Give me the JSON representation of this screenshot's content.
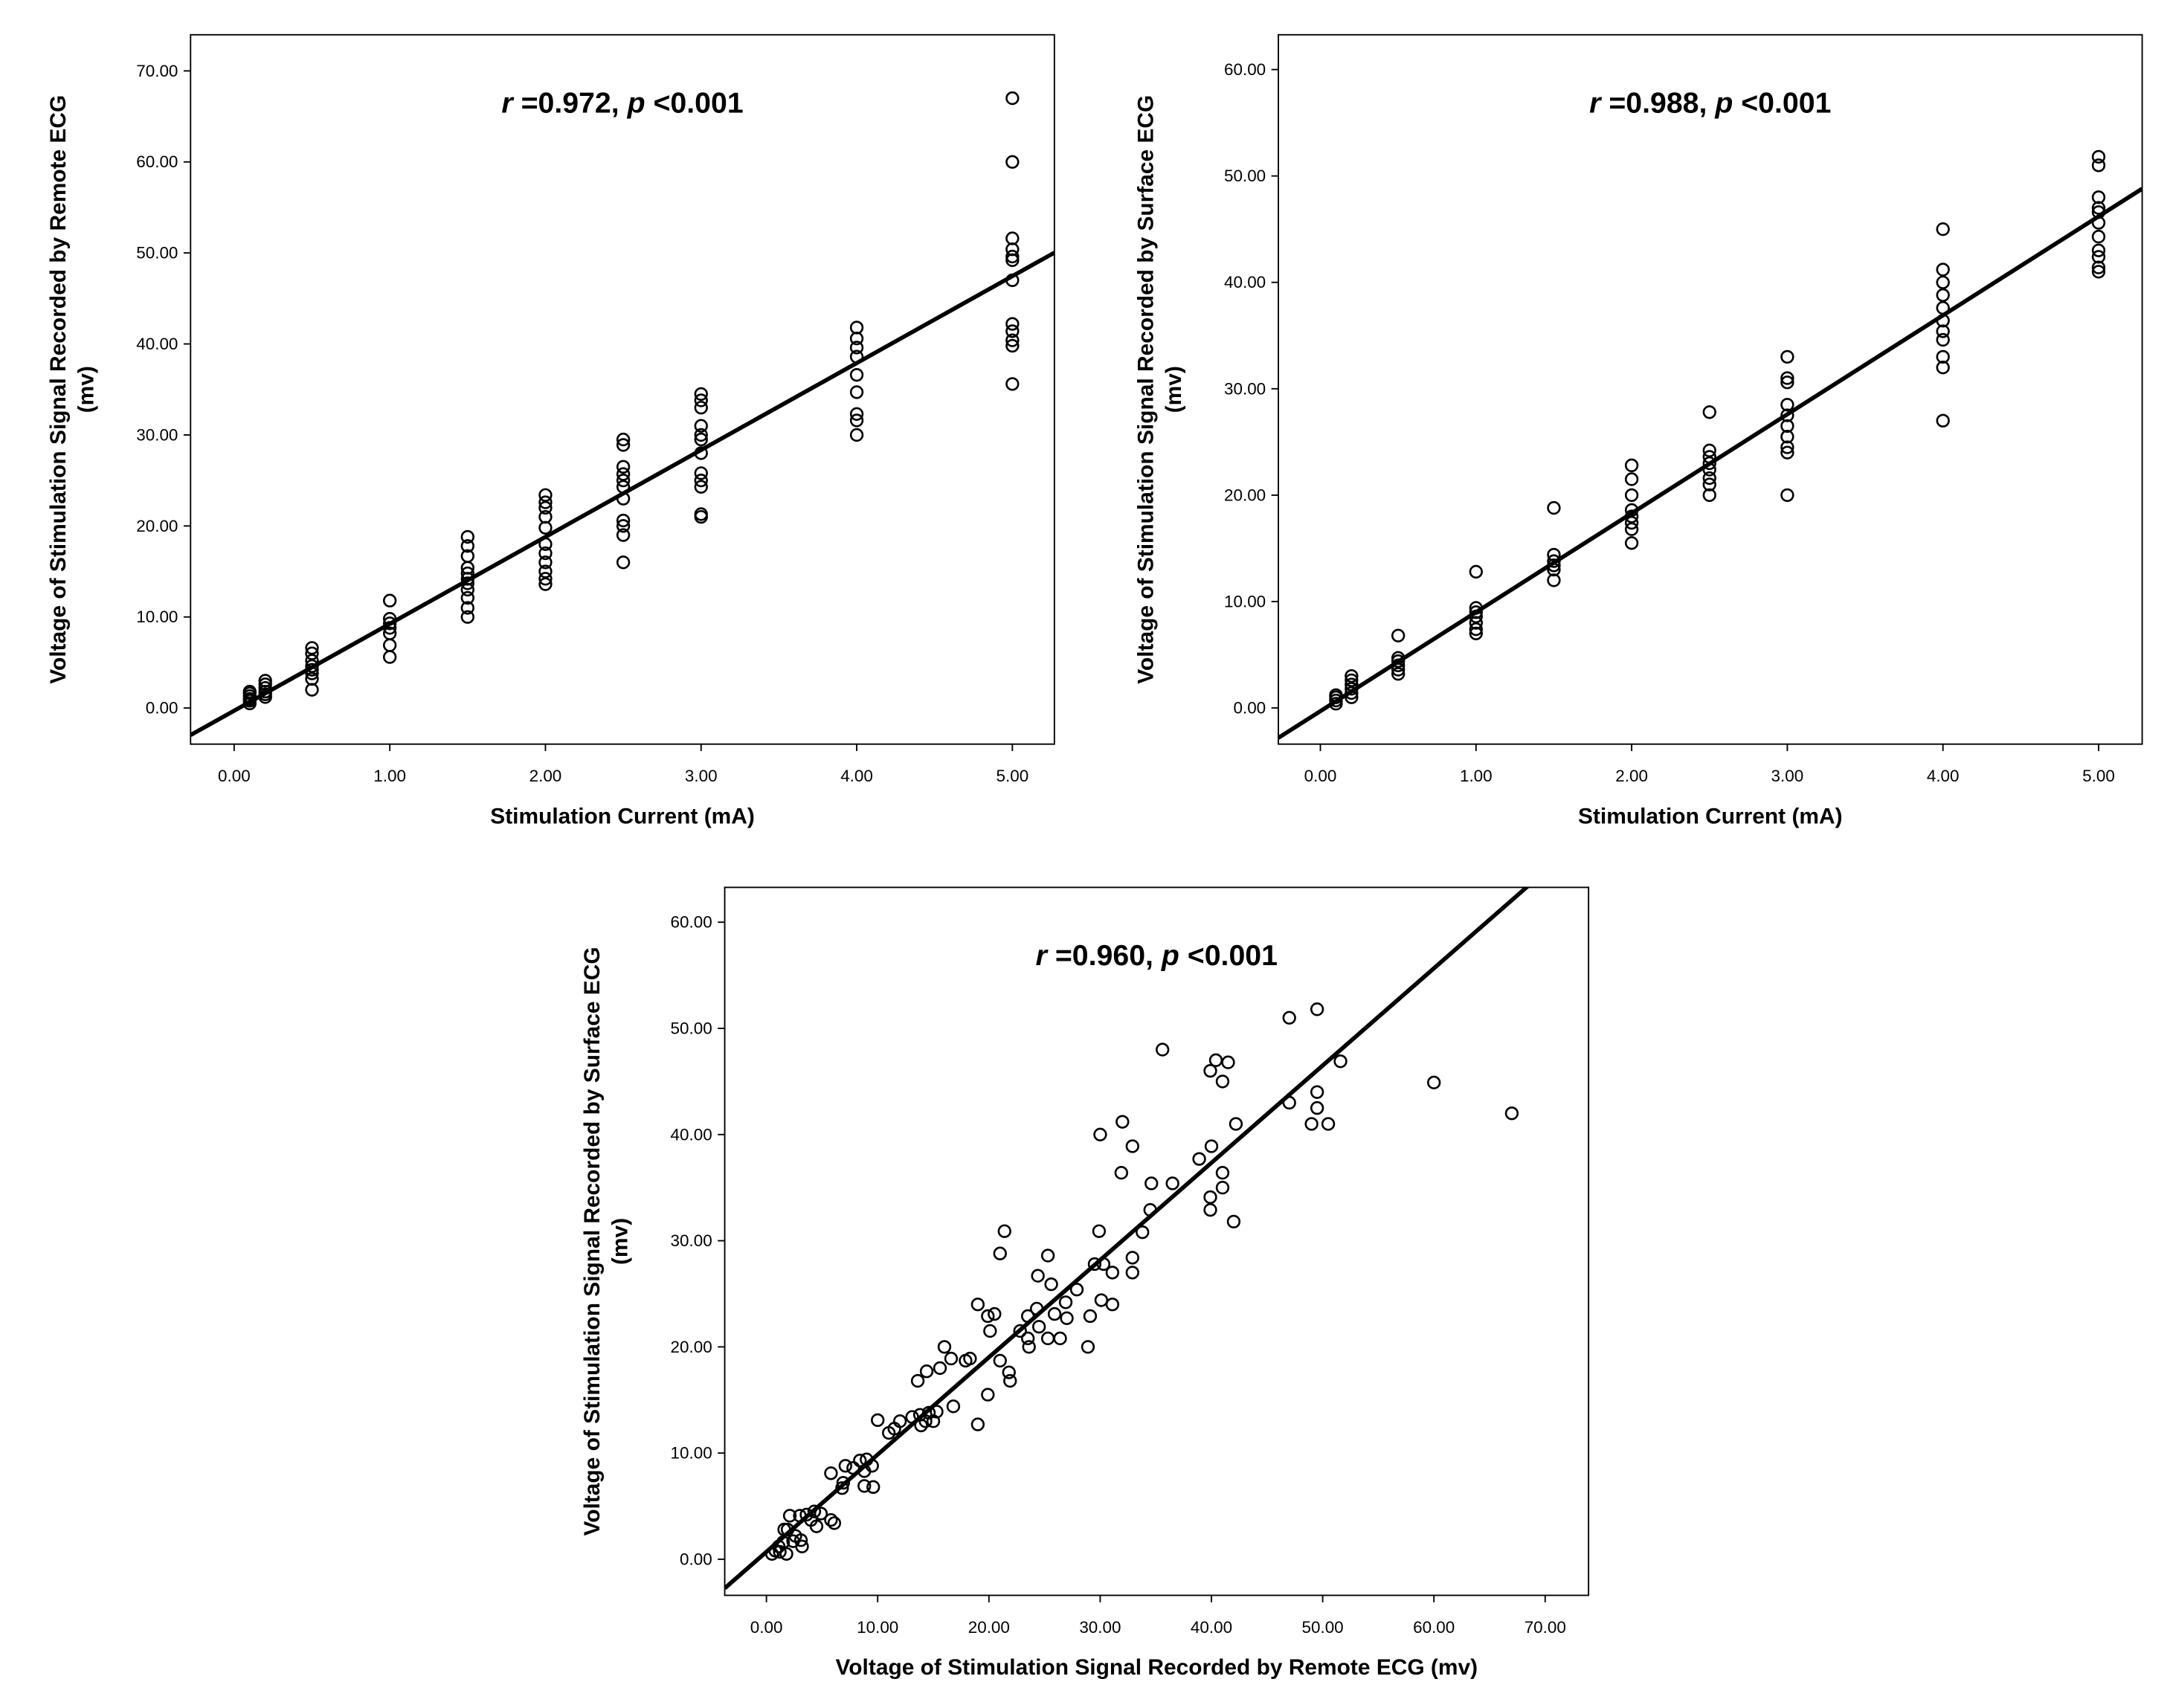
{
  "chart_data": [
    {
      "type": "scatter",
      "annotation": {
        "r_label": "r",
        "r_value": " =0.972, ",
        "p_label": "p",
        "p_value": " <0.001"
      },
      "xlabel": "Stimulation Current (mA)",
      "ylabel": [
        "Voltage of Stimulation Signal Recorded by Remote ECG",
        "(mv)"
      ],
      "xlim": [
        -0.28,
        5.27
      ],
      "ylim": [
        -3.97,
        73.97
      ],
      "xticks": [
        "0.00",
        "1.00",
        "2.00",
        "3.00",
        "4.00",
        "5.00"
      ],
      "yticks": [
        "0.00",
        "10.00",
        "20.00",
        "30.00",
        "40.00",
        "50.00",
        "60.00",
        "70.00"
      ],
      "fit_line": {
        "slope": 9.55,
        "intercept": -0.3
      },
      "grid": false,
      "points": {
        "0.1": [
          0.5,
          0.8,
          1.0,
          1.3,
          1.6,
          1.8
        ],
        "0.2": [
          1.2,
          1.5,
          1.8,
          2.2,
          2.6,
          3.0
        ],
        "0.5": [
          2.0,
          3.2,
          3.8,
          4.2,
          4.6,
          5.2,
          6.0,
          6.6
        ],
        "1.0": [
          5.6,
          6.9,
          8.2,
          8.8,
          9.3,
          9.8,
          11.8
        ],
        "1.5": [
          10.0,
          11.0,
          12.1,
          13.0,
          13.7,
          14.2,
          14.8,
          15.4,
          16.7,
          17.8,
          18.8
        ],
        "2.0": [
          13.6,
          14.2,
          15.0,
          16.0,
          17.0,
          18.0,
          19.8,
          21.0,
          22.0,
          22.6,
          23.4
        ],
        "2.5": [
          16.0,
          19.0,
          20.0,
          20.6,
          23.0,
          24.3,
          25.0,
          25.7,
          26.5,
          28.9,
          29.5
        ],
        "3.0": [
          21.0,
          21.3,
          24.3,
          25.0,
          25.8,
          28.0,
          29.5,
          30.0,
          31.0,
          33.0,
          33.8,
          34.5
        ],
        "4.0": [
          30.0,
          31.6,
          32.3,
          34.7,
          36.6,
          38.6,
          39.6,
          40.6,
          41.8
        ],
        "5.0": [
          35.6,
          39.8,
          40.4,
          41.4,
          42.2,
          47.0,
          49.2,
          49.6,
          50.4,
          51.6,
          60.0,
          67.0
        ]
      }
    },
    {
      "type": "scatter",
      "annotation": {
        "r_label": "r",
        "r_value": " =0.988, ",
        "p_label": "p",
        "p_value": " <0.001"
      },
      "xlabel": "Stimulation Current (mA)",
      "ylabel": [
        "Voltage of Stimulation Signal Recorded by Surface ECG",
        "(mv)"
      ],
      "xlim": [
        -0.27,
        5.28
      ],
      "ylim": [
        -3.4,
        63.27
      ],
      "xticks": [
        "0.00",
        "1.00",
        "2.00",
        "3.00",
        "4.00",
        "5.00"
      ],
      "yticks": [
        "0.00",
        "10.00",
        "20.00",
        "30.00",
        "40.00",
        "50.00",
        "60.00"
      ],
      "fit_line": {
        "slope": 9.3,
        "intercept": -0.3
      },
      "grid": false,
      "points": {
        "0.1": [
          0.4,
          0.7,
          1.0,
          1.2
        ],
        "0.2": [
          1.0,
          1.4,
          1.8,
          2.2,
          2.6,
          3.0
        ],
        "0.5": [
          3.2,
          3.6,
          4.0,
          4.4,
          4.7,
          6.8
        ],
        "1.0": [
          7.0,
          7.4,
          8.0,
          8.6,
          9.0,
          9.4,
          12.8
        ],
        "1.5": [
          12.0,
          13.0,
          13.4,
          13.8,
          14.4,
          18.8
        ],
        "2.0": [
          15.5,
          16.8,
          17.4,
          18.0,
          18.6,
          20.0,
          21.5,
          22.8
        ],
        "2.5": [
          20.0,
          21.0,
          21.6,
          22.4,
          23.0,
          23.6,
          24.2,
          27.8
        ],
        "3.0": [
          20.0,
          24.0,
          24.5,
          25.5,
          26.5,
          27.5,
          28.5,
          30.6,
          31.0,
          33.0
        ],
        "4.0": [
          27.0,
          32.0,
          33.0,
          34.6,
          35.4,
          36.4,
          37.6,
          38.8,
          40.0,
          41.2,
          45.0
        ],
        "5.0": [
          41.0,
          41.4,
          42.4,
          43.0,
          44.3,
          45.6,
          46.6,
          47.0,
          48.0,
          51.0,
          51.8
        ]
      }
    },
    {
      "type": "scatter",
      "annotation": {
        "r_label": "r",
        "r_value": " =0.960, ",
        "p_label": "p",
        "p_value": " <0.001"
      },
      "xlabel": "Voltage of Stimulation Signal Recorded by Remote ECG (mv)",
      "ylabel": [
        "Voltage of Stimulation Signal Recorded by Surface ECG",
        "(mv)"
      ],
      "xlim": [
        -3.75,
        73.9
      ],
      "ylim": [
        -3.4,
        63.28
      ],
      "xticks": [
        "0.00",
        "10.00",
        "20.00",
        "30.00",
        "40.00",
        "50.00",
        "60.00",
        "70.00"
      ],
      "yticks": [
        "0.00",
        "10.00",
        "20.00",
        "30.00",
        "40.00",
        "50.00",
        "60.00"
      ],
      "fit_line": {
        "slope": 0.916,
        "intercept": 0.7
      },
      "grid": false,
      "xy": [
        [
          47,
          51
        ],
        [
          49.5,
          51.8
        ],
        [
          51.6,
          46.9
        ],
        [
          60,
          44.9
        ],
        [
          67,
          42
        ],
        [
          35.6,
          48
        ],
        [
          39.9,
          46
        ],
        [
          40.4,
          47
        ],
        [
          41.5,
          46.8
        ],
        [
          41,
          45
        ],
        [
          47,
          43
        ],
        [
          49.5,
          44
        ],
        [
          49.5,
          42.5
        ],
        [
          49,
          41
        ],
        [
          50.5,
          41
        ],
        [
          42.2,
          41
        ],
        [
          32,
          41.2
        ],
        [
          30,
          40
        ],
        [
          32.9,
          38.9
        ],
        [
          40,
          38.9
        ],
        [
          38.9,
          37.7
        ],
        [
          31.9,
          36.4
        ],
        [
          41,
          36.4
        ],
        [
          34.6,
          35.4
        ],
        [
          36.5,
          35.4
        ],
        [
          41,
          35
        ],
        [
          39.9,
          34.1
        ],
        [
          39.9,
          32.9
        ],
        [
          42,
          31.8
        ],
        [
          34.5,
          32.9
        ],
        [
          33.8,
          30.8
        ],
        [
          29.9,
          30.9
        ],
        [
          21.4,
          30.9
        ],
        [
          21,
          28.8
        ],
        [
          25.3,
          28.6
        ],
        [
          32.9,
          28.4
        ],
        [
          29.5,
          27.8
        ],
        [
          30.3,
          27.8
        ],
        [
          31.1,
          27
        ],
        [
          32.9,
          27
        ],
        [
          24.4,
          26.7
        ],
        [
          25.6,
          25.9
        ],
        [
          27.9,
          25.4
        ],
        [
          30.1,
          24.4
        ],
        [
          31.1,
          24
        ],
        [
          26.9,
          24.2
        ],
        [
          24.3,
          23.6
        ],
        [
          19,
          24
        ],
        [
          20.5,
          23.1
        ],
        [
          23.5,
          22.9
        ],
        [
          25.9,
          23.1
        ],
        [
          19.9,
          22.9
        ],
        [
          29.1,
          22.9
        ],
        [
          27,
          22.7
        ],
        [
          24.5,
          21.9
        ],
        [
          22.8,
          21.5
        ],
        [
          20.1,
          21.5
        ],
        [
          23.5,
          20.8
        ],
        [
          25.3,
          20.8
        ],
        [
          26.4,
          20.8
        ],
        [
          23.6,
          20
        ],
        [
          28.9,
          20
        ],
        [
          16,
          20
        ],
        [
          16.6,
          18.9
        ],
        [
          17.9,
          18.7
        ],
        [
          18.3,
          18.9
        ],
        [
          21,
          18.7
        ],
        [
          15.6,
          18
        ],
        [
          14.4,
          17.7
        ],
        [
          13.6,
          16.8
        ],
        [
          21.8,
          17.6
        ],
        [
          21.9,
          16.8
        ],
        [
          19.9,
          15.5
        ],
        [
          16.8,
          14.4
        ],
        [
          15.3,
          13.9
        ],
        [
          14.6,
          13.8
        ],
        [
          13.8,
          13.6
        ],
        [
          13.1,
          13.4
        ],
        [
          14.3,
          13
        ],
        [
          15,
          13
        ],
        [
          13.9,
          12.6
        ],
        [
          12,
          13
        ],
        [
          11.5,
          12.3
        ],
        [
          11,
          11.9
        ],
        [
          10,
          13.1
        ],
        [
          19,
          12.7
        ],
        [
          9.5,
          8.8
        ],
        [
          9,
          9.4
        ],
        [
          8.4,
          9.3
        ],
        [
          7.8,
          8.6
        ],
        [
          8.8,
          8.3
        ],
        [
          7.1,
          8.8
        ],
        [
          6.9,
          7.2
        ],
        [
          8.8,
          6.9
        ],
        [
          9.6,
          6.8
        ],
        [
          5.8,
          8.1
        ],
        [
          6.8,
          6.7
        ],
        [
          3.6,
          4.2
        ],
        [
          4.3,
          4.5
        ],
        [
          4.9,
          4.3
        ],
        [
          4,
          3.7
        ],
        [
          4.5,
          3.1
        ],
        [
          3,
          4.1
        ],
        [
          5.8,
          3.7
        ],
        [
          6.1,
          3.4
        ],
        [
          2.1,
          4.1
        ],
        [
          1.9,
          2.8
        ],
        [
          2.6,
          2.2
        ],
        [
          3.1,
          1.8
        ],
        [
          3.2,
          1.2
        ],
        [
          1.5,
          1.6
        ],
        [
          1.1,
          1.2
        ],
        [
          1.8,
          0.5
        ],
        [
          0.8,
          0.8
        ],
        [
          0.5,
          0.5
        ],
        [
          1.2,
          0.7
        ],
        [
          1.6,
          2.8
        ],
        [
          2.4,
          1.7
        ]
      ]
    }
  ]
}
